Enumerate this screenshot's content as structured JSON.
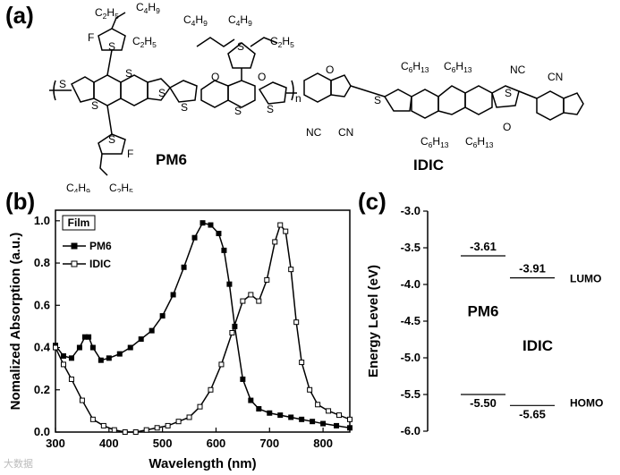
{
  "panels": {
    "a": "(a)",
    "b": "(b)",
    "c": "(c)"
  },
  "structures": {
    "pm6": {
      "name": "PM6",
      "groups": [
        "C2H5",
        "C4H9"
      ],
      "atoms": [
        "F",
        "S",
        "O"
      ],
      "repeat": "n"
    },
    "idic": {
      "name": "IDIC",
      "groups": [
        "C6H13"
      ],
      "atoms": [
        "NC",
        "CN",
        "S",
        "O"
      ]
    }
  },
  "chart_data": [
    {
      "type": "line",
      "xlabel": "Wavelength (nm)",
      "ylabel": "Nomalized Absorption (a.u.)",
      "xlim": [
        300,
        850
      ],
      "ylim": [
        0.0,
        1.05
      ],
      "xticks": [
        "300",
        "400",
        "500",
        "600",
        "700",
        "800"
      ],
      "yticks": [
        "0.0",
        "0.2",
        "0.4",
        "0.6",
        "0.8",
        "1.0"
      ],
      "legend_title": "Film",
      "legend_position": "top-left",
      "series": [
        {
          "name": "PM6",
          "marker": "filled-square",
          "x": [
            300,
            315,
            330,
            345,
            355,
            362,
            370,
            385,
            400,
            420,
            440,
            460,
            480,
            500,
            520,
            540,
            560,
            575,
            590,
            605,
            615,
            625,
            635,
            650,
            665,
            680,
            700,
            720,
            740,
            760,
            780,
            800,
            825,
            850
          ],
          "y": [
            0.41,
            0.36,
            0.35,
            0.4,
            0.45,
            0.45,
            0.4,
            0.34,
            0.35,
            0.37,
            0.4,
            0.44,
            0.48,
            0.55,
            0.65,
            0.78,
            0.92,
            0.99,
            0.98,
            0.94,
            0.86,
            0.7,
            0.5,
            0.25,
            0.15,
            0.11,
            0.09,
            0.08,
            0.07,
            0.06,
            0.05,
            0.04,
            0.03,
            0.02
          ]
        },
        {
          "name": "IDIC",
          "marker": "open-square",
          "x": [
            300,
            315,
            330,
            350,
            370,
            390,
            410,
            430,
            450,
            470,
            490,
            510,
            530,
            550,
            570,
            590,
            610,
            630,
            650,
            665,
            680,
            695,
            710,
            720,
            730,
            740,
            750,
            760,
            775,
            790,
            810,
            830,
            850
          ],
          "y": [
            0.4,
            0.32,
            0.25,
            0.15,
            0.06,
            0.03,
            0.01,
            0.0,
            0.0,
            0.01,
            0.02,
            0.03,
            0.05,
            0.07,
            0.12,
            0.2,
            0.32,
            0.47,
            0.62,
            0.65,
            0.62,
            0.72,
            0.9,
            0.98,
            0.95,
            0.77,
            0.52,
            0.33,
            0.2,
            0.13,
            0.1,
            0.08,
            0.06
          ]
        }
      ]
    },
    {
      "type": "levels",
      "ylabel": "Energy Level (eV)",
      "ylim": [
        -6.0,
        -3.0
      ],
      "yticks": [
        "-3.0",
        "-3.5",
        "-4.0",
        "-4.5",
        "-5.0",
        "-5.5",
        "-6.0"
      ],
      "materials": [
        {
          "name": "PM6",
          "lumo": -3.61,
          "homo": -5.5,
          "lumo_label": "-3.61",
          "homo_label": "-5.50"
        },
        {
          "name": "IDIC",
          "lumo": -3.91,
          "homo": -5.65,
          "lumo_label": "-3.91",
          "homo_label": "-5.65"
        }
      ],
      "annotations": [
        "LUMO",
        "HOMO"
      ]
    }
  ],
  "watermark": "大数据"
}
